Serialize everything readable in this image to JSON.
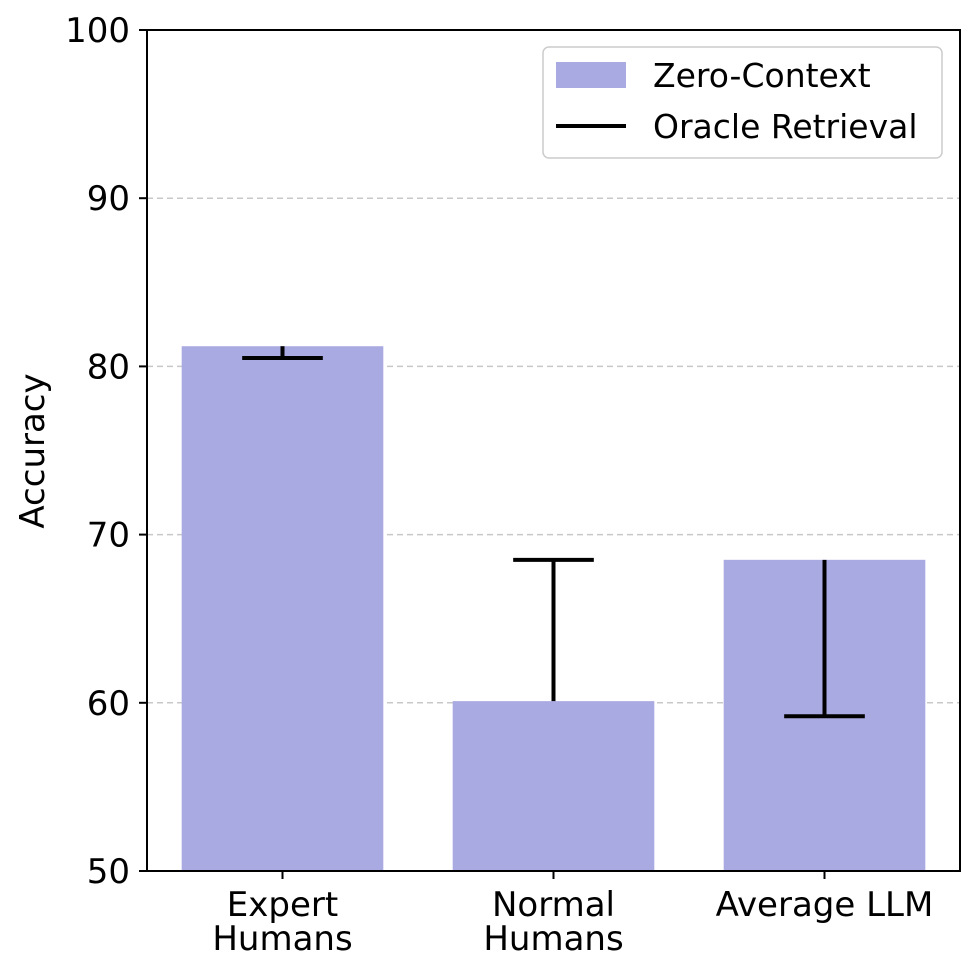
{
  "chart_data": {
    "type": "bar",
    "categories": [
      "Expert Humans",
      "Normal Humans",
      "Average LLM"
    ],
    "category_labels": [
      [
        "Expert",
        "Humans"
      ],
      [
        "Normal",
        "Humans"
      ],
      [
        "Average LLM"
      ]
    ],
    "series": [
      {
        "name": "Zero-Context",
        "kind": "bar",
        "values": [
          81.2,
          60.1,
          68.5
        ]
      },
      {
        "name": "Oracle Retrieval",
        "kind": "marker-line",
        "values": [
          80.5,
          68.5,
          59.2
        ]
      }
    ],
    "title": "",
    "xlabel": "",
    "ylabel": "Accuracy",
    "ylim": [
      50,
      100
    ],
    "yticks": [
      50,
      60,
      70,
      80,
      90,
      100
    ],
    "grid": "y-dashed",
    "legend_position": "top-right",
    "colors": {
      "bar": "#aaaae2",
      "line": "#000000",
      "grid": "#c8c8c8"
    }
  }
}
